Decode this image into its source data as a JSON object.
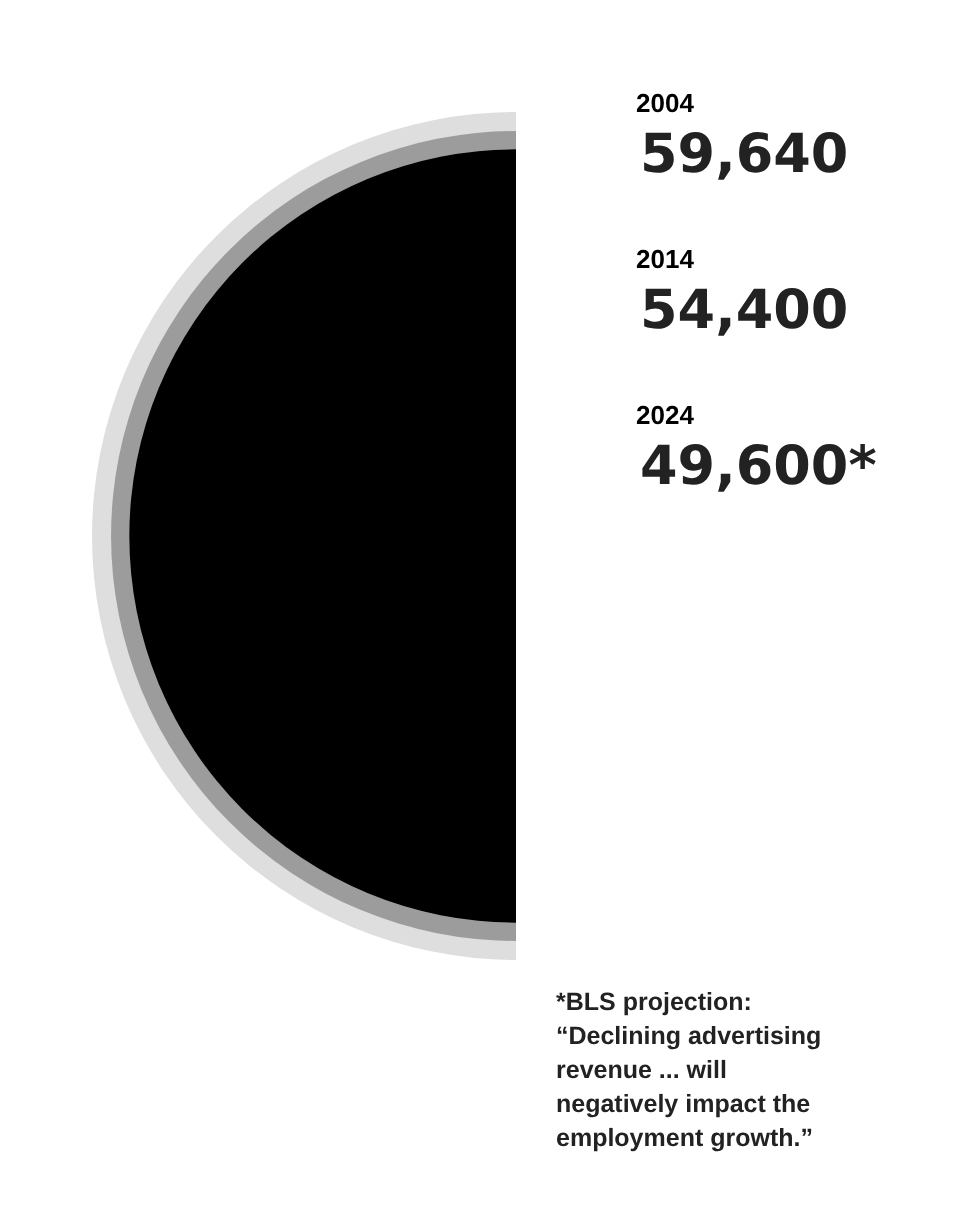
{
  "chart_data": {
    "type": "other",
    "categories": [
      "2004",
      "2014",
      "2024"
    ],
    "values": [
      59640,
      54400,
      49600
    ],
    "value_labels": [
      "59,640",
      "54,400",
      "49,600*"
    ],
    "colors": [
      "#dedede",
      "#9c9c9c",
      "#000000"
    ],
    "annotations": [
      "*BLS projection: “Declining advertising revenue ... will negatively impact the employment growth.”"
    ]
  }
}
